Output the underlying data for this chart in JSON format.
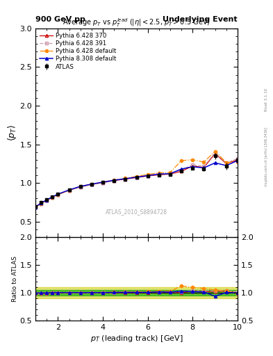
{
  "title_left": "900 GeV pp",
  "title_right": "Underlying Event",
  "plot_title": "Average $p_T$ vs $p_T^{lead}$ ($|\\eta| < 2.5$, $p_T > 0.5$ GeV)",
  "xlabel": "$p_T$ (leading track) [GeV]",
  "ylabel_main": "$\\langle p_T \\rangle$",
  "ylabel_ratio": "Ratio to ATLAS",
  "right_label1": "Rivet 3.1.10",
  "right_label2": "mcplots.cern.ch [arXiv:1306.3436]",
  "watermark": "ATLAS_2010_S8894728",
  "xlim": [
    1.0,
    10.0
  ],
  "ylim_main": [
    0.3,
    3.0
  ],
  "ylim_ratio": [
    0.5,
    2.0
  ],
  "atlas_x": [
    1.0,
    1.25,
    1.5,
    1.75,
    2.0,
    2.5,
    3.0,
    3.5,
    4.0,
    4.5,
    5.0,
    5.5,
    6.0,
    6.5,
    7.0,
    7.5,
    8.0,
    8.5,
    9.0,
    9.5,
    10.0
  ],
  "atlas_y": [
    0.695,
    0.745,
    0.785,
    0.82,
    0.855,
    0.91,
    0.955,
    0.985,
    1.01,
    1.03,
    1.05,
    1.07,
    1.09,
    1.1,
    1.11,
    1.15,
    1.19,
    1.18,
    1.35,
    1.22,
    1.3
  ],
  "atlas_yerr": [
    0.01,
    0.01,
    0.01,
    0.01,
    0.01,
    0.01,
    0.01,
    0.01,
    0.01,
    0.01,
    0.01,
    0.01,
    0.01,
    0.01,
    0.015,
    0.015,
    0.02,
    0.025,
    0.04,
    0.045,
    0.05
  ],
  "py6428_370_x": [
    1.0,
    1.25,
    1.5,
    1.75,
    2.0,
    2.5,
    3.0,
    3.5,
    4.0,
    4.5,
    5.0,
    5.5,
    6.0,
    6.5,
    7.0,
    7.5,
    8.0,
    8.5,
    9.0,
    9.5,
    10.0
  ],
  "py6428_370_y": [
    0.685,
    0.735,
    0.775,
    0.815,
    0.85,
    0.905,
    0.95,
    0.98,
    1.005,
    1.03,
    1.05,
    1.07,
    1.09,
    1.105,
    1.115,
    1.15,
    1.22,
    1.2,
    1.38,
    1.25,
    1.3
  ],
  "py6428_391_x": [
    1.0,
    1.25,
    1.5,
    1.75,
    2.0,
    2.5,
    3.0,
    3.5,
    4.0,
    4.5,
    5.0,
    5.5,
    6.0,
    6.5,
    7.0,
    7.5,
    8.0,
    8.5,
    9.0,
    9.5,
    10.0
  ],
  "py6428_391_y": [
    0.685,
    0.735,
    0.775,
    0.815,
    0.85,
    0.905,
    0.95,
    0.98,
    1.005,
    1.03,
    1.055,
    1.075,
    1.095,
    1.11,
    1.12,
    1.165,
    1.235,
    1.215,
    1.39,
    1.26,
    1.315
  ],
  "py6428_def_x": [
    1.0,
    1.25,
    1.5,
    1.75,
    2.0,
    2.5,
    3.0,
    3.5,
    4.0,
    4.5,
    5.0,
    5.5,
    6.0,
    6.5,
    7.0,
    7.5,
    8.0,
    8.5,
    9.0,
    9.5,
    10.0
  ],
  "py6428_def_y": [
    0.685,
    0.735,
    0.775,
    0.815,
    0.85,
    0.905,
    0.955,
    0.985,
    1.01,
    1.04,
    1.06,
    1.085,
    1.11,
    1.13,
    1.135,
    1.29,
    1.3,
    1.27,
    1.41,
    1.265,
    1.27
  ],
  "py8308_def_x": [
    1.0,
    1.25,
    1.5,
    1.75,
    2.0,
    2.5,
    3.0,
    3.5,
    4.0,
    4.5,
    5.0,
    5.5,
    6.0,
    6.5,
    7.0,
    7.5,
    8.0,
    8.5,
    9.0,
    9.5,
    10.0
  ],
  "py8308_def_y": [
    0.69,
    0.74,
    0.78,
    0.82,
    0.855,
    0.91,
    0.955,
    0.985,
    1.01,
    1.035,
    1.055,
    1.075,
    1.095,
    1.115,
    1.12,
    1.18,
    1.21,
    1.195,
    1.26,
    1.225,
    1.29
  ],
  "color_atlas": "#000000",
  "color_py6428_370": "#cc0000",
  "color_py6428_391": "#cc6633",
  "color_py6428_def": "#ff8800",
  "color_py8308_def": "#0000cc",
  "band_green_inner": "#00aa00",
  "band_yellow_outer": "#cccc00",
  "xticks": [
    2,
    4,
    6,
    8,
    10
  ],
  "yticks_main": [
    0.5,
    1.0,
    1.5,
    2.0,
    2.5,
    3.0
  ],
  "yticks_ratio": [
    0.5,
    1.0,
    1.5,
    2.0
  ]
}
